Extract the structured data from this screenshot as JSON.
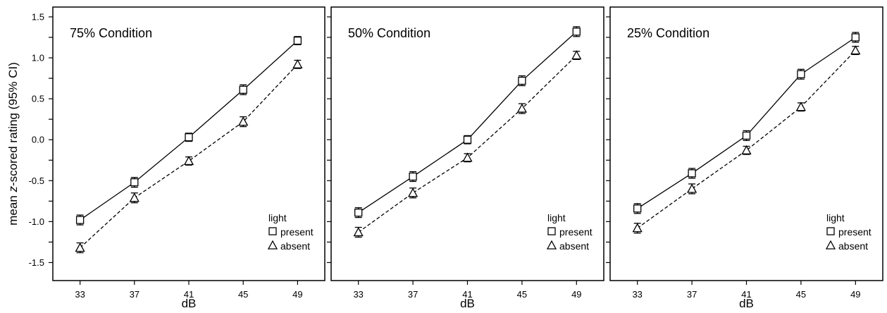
{
  "chart_data": [
    {
      "type": "line",
      "title": "75% Condition",
      "xlabel": "dB",
      "ylabel_parts": [
        "mean ",
        "z",
        "-scored rating (95% CI)"
      ],
      "x": [
        33,
        37,
        41,
        45,
        49
      ],
      "x_tick_labels": [
        "33",
        "37",
        "41",
        "45",
        "49"
      ],
      "xlim": [
        31,
        51
      ],
      "ylim": [
        -1.72,
        1.62
      ],
      "y_ticks": [
        -1.5,
        -1.25,
        -1.0,
        -0.75,
        -0.5,
        -0.25,
        0.0,
        0.25,
        0.5,
        0.75,
        1.0,
        1.25,
        1.5
      ],
      "y_tick_labels": [
        "-1.5",
        "-1.0",
        "-0.5",
        "0.0",
        "0.5",
        "1.0",
        "1.5"
      ],
      "legend": {
        "title": "light",
        "position": "bottom-right"
      },
      "series": [
        {
          "name": "present",
          "marker": "square",
          "line": "solid",
          "values": [
            -0.98,
            -0.52,
            0.03,
            0.61,
            1.21
          ],
          "ci_half": [
            0.06,
            0.06,
            0.05,
            0.06,
            0.05
          ]
        },
        {
          "name": "absent",
          "marker": "triangle",
          "line": "dashed",
          "values": [
            -1.32,
            -0.71,
            -0.26,
            0.22,
            0.92
          ],
          "ci_half": [
            0.06,
            0.06,
            0.05,
            0.06,
            0.05
          ]
        }
      ]
    },
    {
      "type": "line",
      "title": "50% Condition",
      "xlabel": "dB",
      "x": [
        33,
        37,
        41,
        45,
        49
      ],
      "x_tick_labels": [
        "33",
        "37",
        "41",
        "45",
        "49"
      ],
      "xlim": [
        31,
        51
      ],
      "ylim": [
        -1.72,
        1.62
      ],
      "y_ticks": [
        -1.5,
        -1.25,
        -1.0,
        -0.75,
        -0.5,
        -0.25,
        0.0,
        0.25,
        0.5,
        0.75,
        1.0,
        1.25,
        1.5
      ],
      "legend": {
        "title": "light",
        "position": "bottom-right"
      },
      "series": [
        {
          "name": "present",
          "marker": "square",
          "line": "solid",
          "values": [
            -0.89,
            -0.45,
            0.0,
            0.72,
            1.32
          ],
          "ci_half": [
            0.06,
            0.06,
            0.05,
            0.06,
            0.06
          ]
        },
        {
          "name": "absent",
          "marker": "triangle",
          "line": "dashed",
          "values": [
            -1.13,
            -0.65,
            -0.22,
            0.38,
            1.03
          ],
          "ci_half": [
            0.06,
            0.06,
            0.05,
            0.06,
            0.05
          ]
        }
      ]
    },
    {
      "type": "line",
      "title": "25% Condition",
      "xlabel": "dB",
      "x": [
        33,
        37,
        41,
        45,
        49
      ],
      "x_tick_labels": [
        "33",
        "37",
        "41",
        "45",
        "49"
      ],
      "xlim": [
        31,
        51
      ],
      "ylim": [
        -1.72,
        1.62
      ],
      "y_ticks": [
        -1.5,
        -1.25,
        -1.0,
        -0.75,
        -0.5,
        -0.25,
        0.0,
        0.25,
        0.5,
        0.75,
        1.0,
        1.25,
        1.5
      ],
      "legend": {
        "title": "light",
        "position": "bottom-right"
      },
      "series": [
        {
          "name": "present",
          "marker": "square",
          "line": "solid",
          "values": [
            -0.84,
            -0.41,
            0.05,
            0.8,
            1.25
          ],
          "ci_half": [
            0.06,
            0.06,
            0.06,
            0.06,
            0.06
          ]
        },
        {
          "name": "absent",
          "marker": "triangle",
          "line": "dashed",
          "values": [
            -1.08,
            -0.6,
            -0.13,
            0.4,
            1.09
          ],
          "ci_half": [
            0.06,
            0.06,
            0.05,
            0.05,
            0.05
          ]
        }
      ]
    }
  ]
}
